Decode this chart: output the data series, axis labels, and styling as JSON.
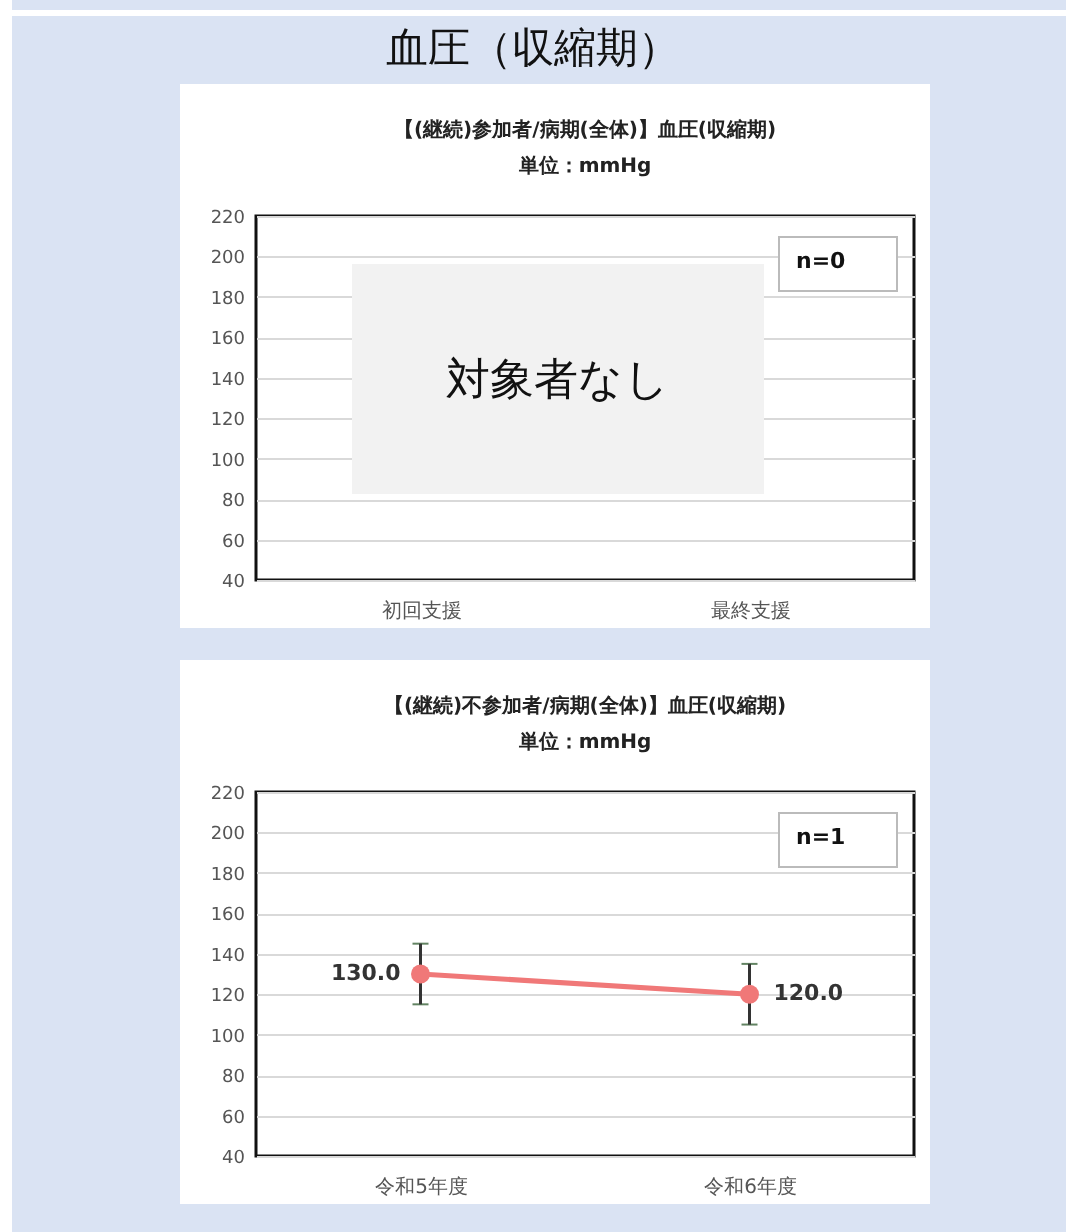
{
  "chart_data": [
    {
      "type": "line",
      "title": "【(継続)参加者/病期(全体)】血圧(収縮期)",
      "subtitle": "単位：mmHg",
      "categories": [
        "初回支援",
        "最終支援"
      ],
      "series": [
        {
          "color": "#f07878",
          "values": [
            null,
            null
          ]
        }
      ],
      "ylim": [
        40,
        220
      ],
      "yticks": [
        40,
        60,
        80,
        100,
        120,
        140,
        160,
        180,
        200,
        220
      ],
      "grid": "y",
      "marker": "circle",
      "annotations": [
        "血圧（収縮期）",
        "対象者なし",
        "n=0"
      ]
    },
    {
      "type": "line",
      "title": "【(継続)不参加者/病期(全体)】血圧(収縮期)",
      "subtitle": "単位：mmHg",
      "categories": [
        "令和5年度",
        "令和6年度"
      ],
      "series": [
        {
          "color": "#f07878",
          "values": [
            130.0,
            120.0
          ],
          "errors": [
            [
              115,
              145
            ],
            [
              105,
              135
            ]
          ],
          "value_labels": [
            "130.0",
            "120.0"
          ]
        }
      ],
      "ylim": [
        40,
        220
      ],
      "yticks": [
        40,
        60,
        80,
        100,
        120,
        140,
        160,
        180,
        200,
        220
      ],
      "grid": "y",
      "marker": "circle",
      "annotations": [
        "n=1"
      ]
    }
  ]
}
